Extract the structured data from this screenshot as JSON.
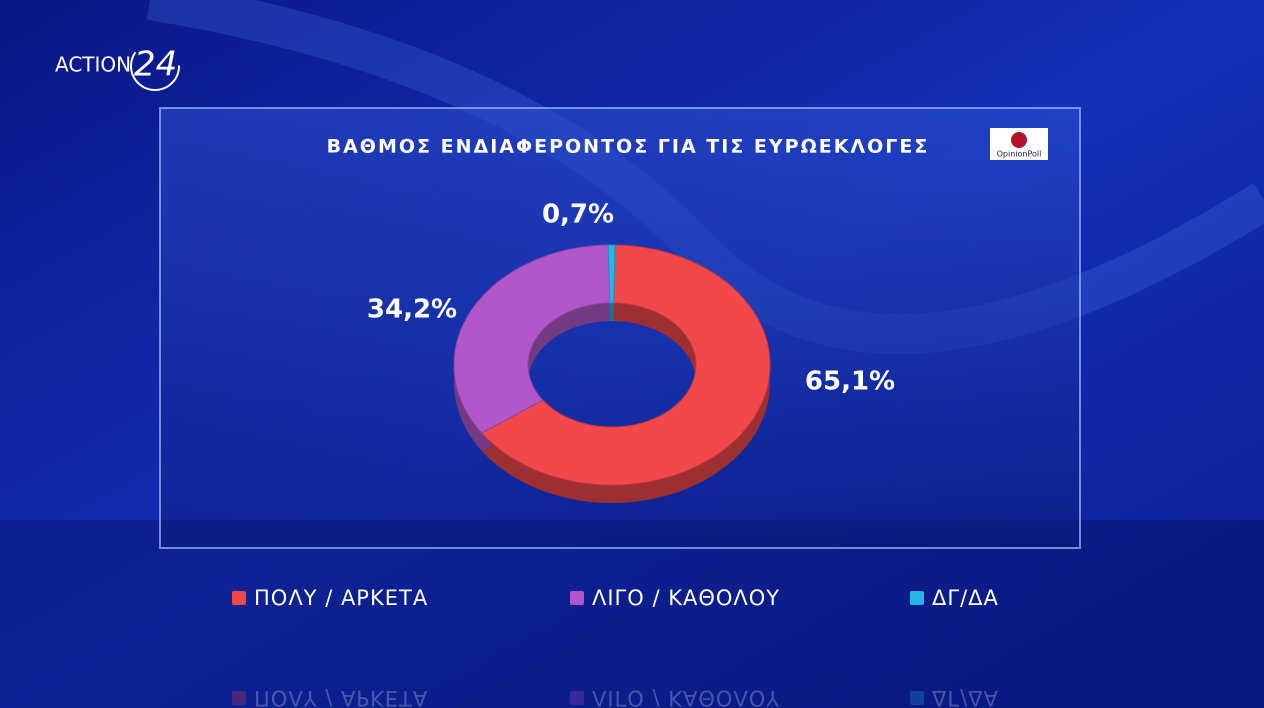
{
  "branding": {
    "channel": "ACTION",
    "channel_number": "24",
    "pollster": "OpinionPoll"
  },
  "chart_data": {
    "type": "pie",
    "donut": true,
    "title": "ΒΑΘΜΟΣ ΕΝΔΙΑΦΕΡΟΝΤΟΣ ΓΙΑ ΤΙΣ ΕΥΡΩΕΚΛΟΓΕΣ",
    "categories": [
      "ΠΟΛΥ / ΑΡΚΕΤΑ",
      "ΛΙΓΟ / ΚΑΘΟΛΟΥ",
      "ΔΓ/ΔΑ"
    ],
    "values": [
      65.1,
      34.2,
      0.7
    ],
    "value_labels": [
      "65,1%",
      "34,2%",
      "0,7%"
    ],
    "colors": [
      "#f2474b",
      "#b257c9",
      "#27b4ea"
    ],
    "legend": "bottom"
  }
}
